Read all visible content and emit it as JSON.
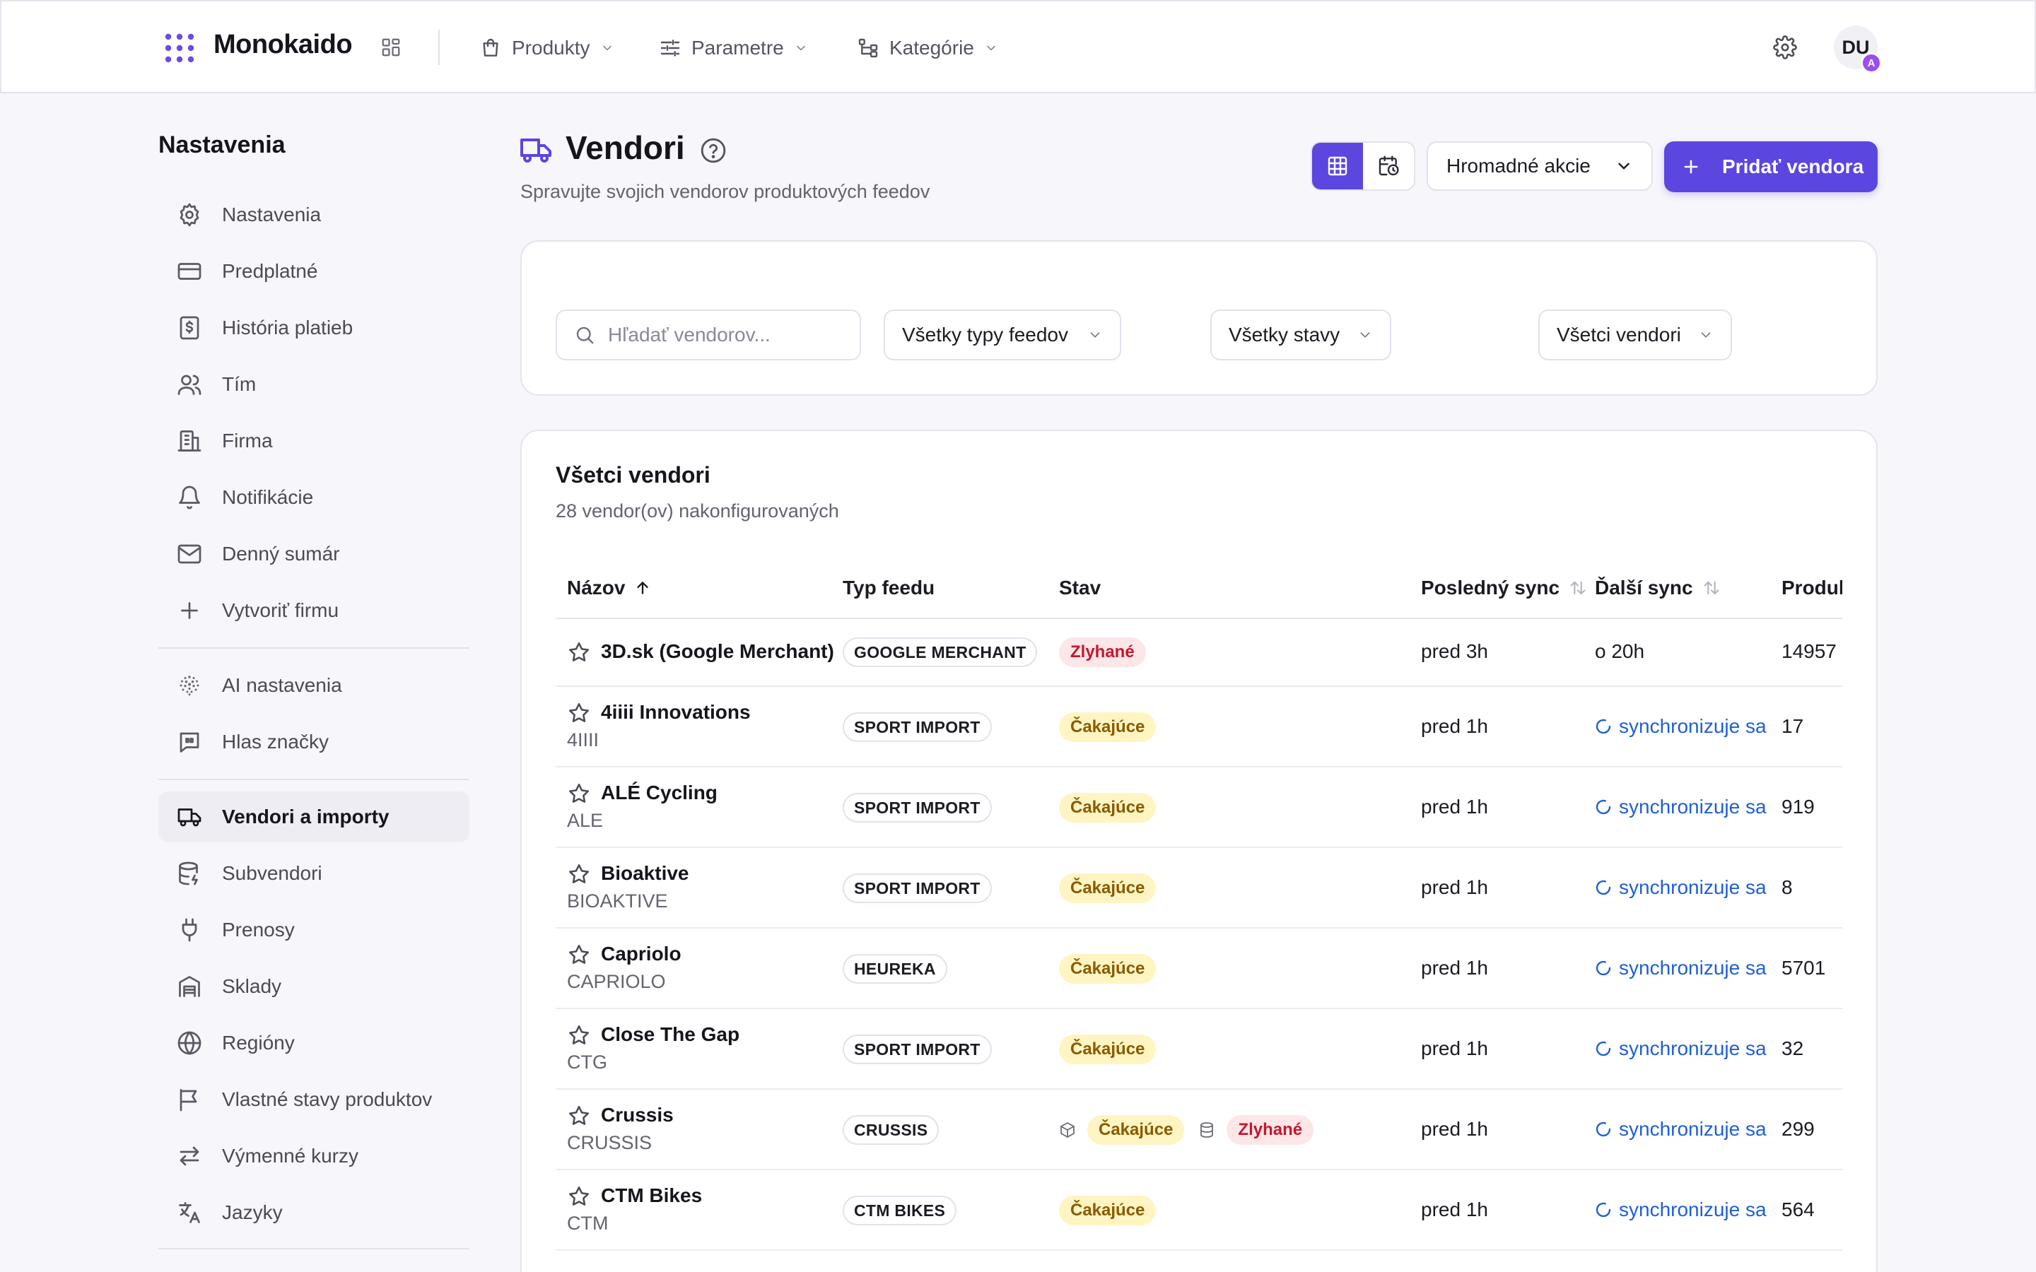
{
  "app": {
    "name": "Monokaido"
  },
  "topnav": [
    {
      "label": "Produkty",
      "icon": "shopping-bag-icon"
    },
    {
      "label": "Parametre",
      "icon": "sliders-icon"
    },
    {
      "label": "Kategórie",
      "icon": "tree-icon"
    }
  ],
  "user": {
    "initials": "DU",
    "badge": "A"
  },
  "sidebar": {
    "title": "Nastavenia",
    "items": [
      {
        "label": "Nastavenia",
        "icon": "gear-icon"
      },
      {
        "label": "Predplatné",
        "icon": "credit-card-icon"
      },
      {
        "label": "História platieb",
        "icon": "receipt-icon"
      },
      {
        "label": "Tím",
        "icon": "users-icon"
      },
      {
        "label": "Firma",
        "icon": "building-icon"
      },
      {
        "label": "Notifikácie",
        "icon": "bell-icon"
      },
      {
        "label": "Denný sumár",
        "icon": "mail-icon"
      },
      {
        "label": "Vytvoriť firmu",
        "icon": "plus-icon"
      },
      {
        "label": "AI nastavenia",
        "icon": "ai-dots-icon"
      },
      {
        "label": "Hlas značky",
        "icon": "quote-icon"
      },
      {
        "label": "Vendori a importy",
        "icon": "truck-icon",
        "active": true
      },
      {
        "label": "Subvendori",
        "icon": "database-icon"
      },
      {
        "label": "Prenosy",
        "icon": "plug-icon"
      },
      {
        "label": "Sklady",
        "icon": "warehouse-icon"
      },
      {
        "label": "Regióny",
        "icon": "globe-icon"
      },
      {
        "label": "Vlastné stavy produktov",
        "icon": "flag-icon"
      },
      {
        "label": "Výmenné kurzy",
        "icon": "exchange-icon"
      },
      {
        "label": "Jazyky",
        "icon": "translate-icon"
      }
    ]
  },
  "page": {
    "title": "Vendori",
    "subtitle": "Spravujte svojich vendorov produktových feedov",
    "bulk_label": "Hromadné akcie",
    "add_label": "Pridať vendora"
  },
  "filters": {
    "search_placeholder": "Hľadať vendorov...",
    "feed_type": "Všetky typy feedov",
    "status": "Všetky stavy",
    "vendors": "Všetci vendori"
  },
  "table": {
    "title": "Všetci vendori",
    "subtitle": "28 vendor(ov) nakonfigurovaných",
    "columns": {
      "name": "Názov",
      "feed": "Typ feedu",
      "status": "Stav",
      "last_sync": "Posledný sync",
      "next_sync": "Ďalší sync",
      "products": "Produkty"
    },
    "rows": [
      {
        "name": "3D.sk (Google Merchant)",
        "code": "",
        "feed": "GOOGLE MERCHANT",
        "status": [
          {
            "label": "Zlyhané",
            "type": "fail"
          }
        ],
        "last": "pred 3h",
        "next": "o 20h",
        "next_syncing": false,
        "products": "14957"
      },
      {
        "name": "4iiii Innovations",
        "code": "4IIII",
        "feed": "SPORT IMPORT",
        "status": [
          {
            "label": "Čakajúce",
            "type": "wait"
          }
        ],
        "last": "pred 1h",
        "next": "synchronizuje sa",
        "next_syncing": true,
        "products": "17"
      },
      {
        "name": "ALÉ Cycling",
        "code": "ALE",
        "feed": "SPORT IMPORT",
        "status": [
          {
            "label": "Čakajúce",
            "type": "wait"
          }
        ],
        "last": "pred 1h",
        "next": "synchronizuje sa",
        "next_syncing": true,
        "products": "919"
      },
      {
        "name": "Bioaktive",
        "code": "BIOAKTIVE",
        "feed": "SPORT IMPORT",
        "status": [
          {
            "label": "Čakajúce",
            "type": "wait"
          }
        ],
        "last": "pred 1h",
        "next": "synchronizuje sa",
        "next_syncing": true,
        "products": "8"
      },
      {
        "name": "Capriolo",
        "code": "CAPRIOLO",
        "feed": "HEUREKA",
        "status": [
          {
            "label": "Čakajúce",
            "type": "wait"
          }
        ],
        "last": "pred 1h",
        "next": "synchronizuje sa",
        "next_syncing": true,
        "products": "5701"
      },
      {
        "name": "Close The Gap",
        "code": "CTG",
        "feed": "SPORT IMPORT",
        "status": [
          {
            "label": "Čakajúce",
            "type": "wait"
          }
        ],
        "last": "pred 1h",
        "next": "synchronizuje sa",
        "next_syncing": true,
        "products": "32"
      },
      {
        "name": "Crussis",
        "code": "CRUSSIS",
        "feed": "CRUSSIS",
        "status": [
          {
            "label": "Čakajúce",
            "type": "wait",
            "icon": "box-icon"
          },
          {
            "label": "Zlyhané",
            "type": "fail",
            "icon": "database-icon"
          }
        ],
        "last": "pred 1h",
        "next": "synchronizuje sa",
        "next_syncing": true,
        "products": "299"
      },
      {
        "name": "CTM Bikes",
        "code": "CTM",
        "feed": "CTM BIKES",
        "status": [
          {
            "label": "Čakajúce",
            "type": "wait"
          }
        ],
        "last": "pred 1h",
        "next": "synchronizuje sa",
        "next_syncing": true,
        "products": "564"
      }
    ]
  },
  "colors": {
    "accent": "#5b46e0",
    "fail_bg": "#fde6e8",
    "fail_fg": "#c4182f",
    "wait_bg": "#fff5c2",
    "wait_fg": "#8a5a00",
    "link": "#1f5fd6"
  }
}
